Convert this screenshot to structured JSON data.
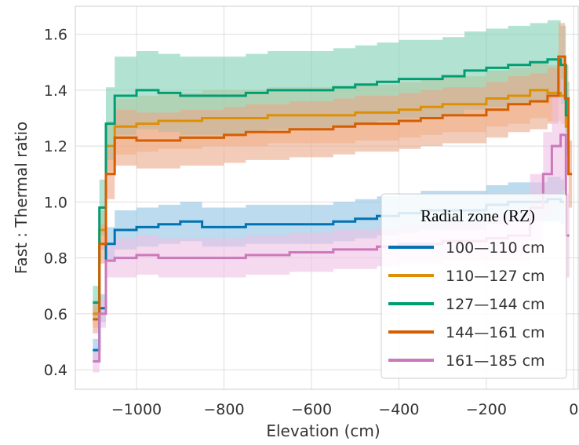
{
  "chart_data": {
    "type": "line",
    "title": "",
    "xlabel": "Elevation (cm)",
    "ylabel": "Fast : Thermal ratio",
    "xlim": [
      -1140,
      12
    ],
    "ylim": [
      0.33,
      1.7
    ],
    "xticks": [
      -1000,
      -800,
      -600,
      -400,
      -200,
      0
    ],
    "xtick_labels": [
      "−1000",
      "−800",
      "−600",
      "−400",
      "−200",
      "0"
    ],
    "yticks": [
      0.4,
      0.6,
      0.8,
      1.0,
      1.2,
      1.4,
      1.6
    ],
    "ytick_labels": [
      "0.4",
      "0.6",
      "0.8",
      "1.0",
      "1.2",
      "1.4",
      "1.6"
    ],
    "grid": true,
    "legend": {
      "title": "Radial zone (RZ)",
      "placement": "right",
      "entries": [
        "100—110 cm",
        "110—127 cm",
        "127—144 cm",
        "144—161 cm",
        "161—185 cm"
      ]
    },
    "series": [
      {
        "name": "100—110 cm",
        "color": "#0173b2",
        "band_color": "#8fc3e3",
        "x": [
          -1100,
          -1085,
          -1070,
          -1050,
          -1000,
          -950,
          -900,
          -850,
          -800,
          -750,
          -700,
          -650,
          -600,
          -550,
          -500,
          -450,
          -400,
          -350,
          -300,
          -250,
          -200,
          -150,
          -100,
          -60,
          -30
        ],
        "y": [
          0.47,
          0.62,
          0.85,
          0.9,
          0.91,
          0.92,
          0.93,
          0.91,
          0.91,
          0.92,
          0.92,
          0.92,
          0.92,
          0.93,
          0.94,
          0.95,
          0.96,
          0.97,
          0.97,
          0.97,
          0.99,
          1.0,
          1.0,
          1.01,
          1.0
        ],
        "err": [
          0.04,
          0.05,
          0.06,
          0.07,
          0.07,
          0.07,
          0.07,
          0.07,
          0.07,
          0.07,
          0.07,
          0.07,
          0.07,
          0.07,
          0.07,
          0.07,
          0.07,
          0.07,
          0.07,
          0.07,
          0.07,
          0.07,
          0.07,
          0.08,
          0.08
        ]
      },
      {
        "name": "110—127 cm",
        "color": "#de8f05",
        "band_color": "#f5be85",
        "x": [
          -1100,
          -1085,
          -1070,
          -1050,
          -1000,
          -950,
          -900,
          -850,
          -800,
          -750,
          -700,
          -650,
          -600,
          -550,
          -500,
          -450,
          -400,
          -350,
          -300,
          -250,
          -200,
          -150,
          -100,
          -60,
          -30,
          -18
        ],
        "y": [
          0.6,
          0.9,
          1.2,
          1.27,
          1.28,
          1.29,
          1.29,
          1.3,
          1.3,
          1.3,
          1.31,
          1.31,
          1.31,
          1.31,
          1.32,
          1.32,
          1.33,
          1.34,
          1.35,
          1.35,
          1.37,
          1.38,
          1.4,
          1.39,
          1.38,
          1.27
        ],
        "err": [
          0.05,
          0.07,
          0.09,
          0.1,
          0.1,
          0.1,
          0.1,
          0.1,
          0.1,
          0.1,
          0.1,
          0.1,
          0.1,
          0.1,
          0.1,
          0.1,
          0.1,
          0.1,
          0.1,
          0.1,
          0.1,
          0.1,
          0.1,
          0.1,
          0.1,
          0.1
        ]
      },
      {
        "name": "127—144 cm",
        "color": "#029e73",
        "band_color": "#7fd1b4",
        "x": [
          -1100,
          -1085,
          -1070,
          -1050,
          -1000,
          -950,
          -900,
          -850,
          -800,
          -750,
          -700,
          -650,
          -600,
          -550,
          -500,
          -450,
          -400,
          -350,
          -300,
          -250,
          -200,
          -150,
          -100,
          -60,
          -30,
          -18
        ],
        "y": [
          0.64,
          0.98,
          1.28,
          1.38,
          1.4,
          1.39,
          1.38,
          1.38,
          1.38,
          1.39,
          1.4,
          1.4,
          1.4,
          1.41,
          1.42,
          1.43,
          1.44,
          1.44,
          1.45,
          1.47,
          1.48,
          1.49,
          1.5,
          1.51,
          1.49,
          1.31
        ],
        "err": [
          0.06,
          0.1,
          0.13,
          0.14,
          0.14,
          0.14,
          0.14,
          0.14,
          0.14,
          0.14,
          0.14,
          0.14,
          0.14,
          0.14,
          0.14,
          0.14,
          0.14,
          0.14,
          0.14,
          0.14,
          0.14,
          0.14,
          0.14,
          0.14,
          0.14,
          0.12
        ]
      },
      {
        "name": "144—161 cm",
        "color": "#d55e00",
        "band_color": "#eba98a",
        "x": [
          -1100,
          -1085,
          -1070,
          -1050,
          -1000,
          -950,
          -900,
          -850,
          -800,
          -750,
          -700,
          -650,
          -600,
          -550,
          -500,
          -450,
          -400,
          -350,
          -300,
          -250,
          -200,
          -150,
          -100,
          -60,
          -35,
          -20,
          -12
        ],
        "y": [
          0.58,
          0.85,
          1.1,
          1.23,
          1.22,
          1.22,
          1.23,
          1.23,
          1.24,
          1.25,
          1.25,
          1.26,
          1.26,
          1.27,
          1.28,
          1.28,
          1.29,
          1.3,
          1.31,
          1.31,
          1.33,
          1.35,
          1.36,
          1.38,
          1.52,
          1.37,
          1.1
        ],
        "err": [
          0.05,
          0.07,
          0.09,
          0.1,
          0.1,
          0.1,
          0.1,
          0.1,
          0.1,
          0.1,
          0.1,
          0.1,
          0.1,
          0.1,
          0.1,
          0.1,
          0.1,
          0.1,
          0.1,
          0.1,
          0.1,
          0.1,
          0.1,
          0.1,
          0.12,
          0.12,
          0.12
        ]
      },
      {
        "name": "161—185 cm",
        "color": "#cc78bc",
        "band_color": "#efbfe4",
        "x": [
          -1100,
          -1085,
          -1070,
          -1050,
          -1000,
          -950,
          -900,
          -850,
          -800,
          -750,
          -700,
          -650,
          -600,
          -550,
          -500,
          -450,
          -400,
          -350,
          -300,
          -250,
          -200,
          -150,
          -100,
          -70,
          -50,
          -30,
          -18
        ],
        "y": [
          0.43,
          0.6,
          0.79,
          0.8,
          0.81,
          0.8,
          0.8,
          0.8,
          0.8,
          0.81,
          0.81,
          0.82,
          0.82,
          0.83,
          0.83,
          0.84,
          0.85,
          0.85,
          0.86,
          0.86,
          0.87,
          0.88,
          0.98,
          1.1,
          1.2,
          1.24,
          0.88
        ],
        "err": [
          0.04,
          0.05,
          0.06,
          0.07,
          0.07,
          0.07,
          0.07,
          0.07,
          0.07,
          0.07,
          0.07,
          0.07,
          0.07,
          0.07,
          0.07,
          0.07,
          0.07,
          0.07,
          0.07,
          0.07,
          0.08,
          0.09,
          0.12,
          0.15,
          0.18,
          0.2,
          0.15
        ]
      }
    ]
  }
}
